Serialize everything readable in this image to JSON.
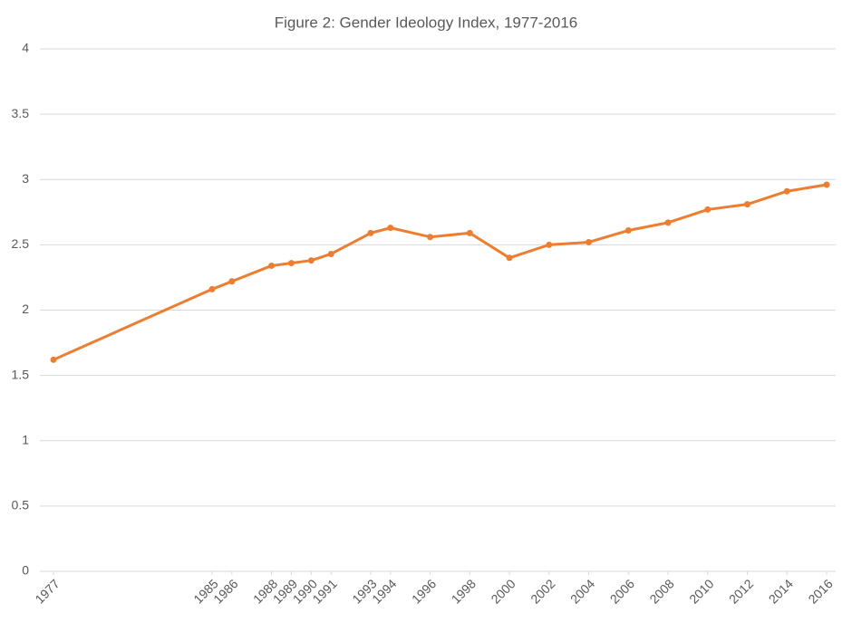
{
  "chart_data": {
    "type": "line",
    "title": "Figure 2: Gender Ideology Index, 1977-2016",
    "x": [
      1977,
      1985,
      1986,
      1988,
      1989,
      1990,
      1991,
      1993,
      1994,
      1996,
      1998,
      2000,
      2002,
      2004,
      2006,
      2008,
      2010,
      2012,
      2014,
      2016
    ],
    "values": [
      1.62,
      2.16,
      2.22,
      2.34,
      2.36,
      2.38,
      2.43,
      2.59,
      2.63,
      2.56,
      2.59,
      2.4,
      2.5,
      2.52,
      2.61,
      2.67,
      2.77,
      2.81,
      2.91,
      2.96
    ],
    "color": "#ed7d31",
    "xlim": [
      1977,
      2016
    ],
    "xticks": [
      1977,
      1985,
      1986,
      1988,
      1989,
      1990,
      1991,
      1993,
      1994,
      1996,
      1998,
      2000,
      2002,
      2004,
      2006,
      2008,
      2010,
      2012,
      2014,
      2016
    ],
    "ylim": [
      0,
      4
    ],
    "yticks": [
      0,
      0.5,
      1,
      1.5,
      2,
      2.5,
      3,
      3.5,
      4
    ],
    "grid": true
  }
}
